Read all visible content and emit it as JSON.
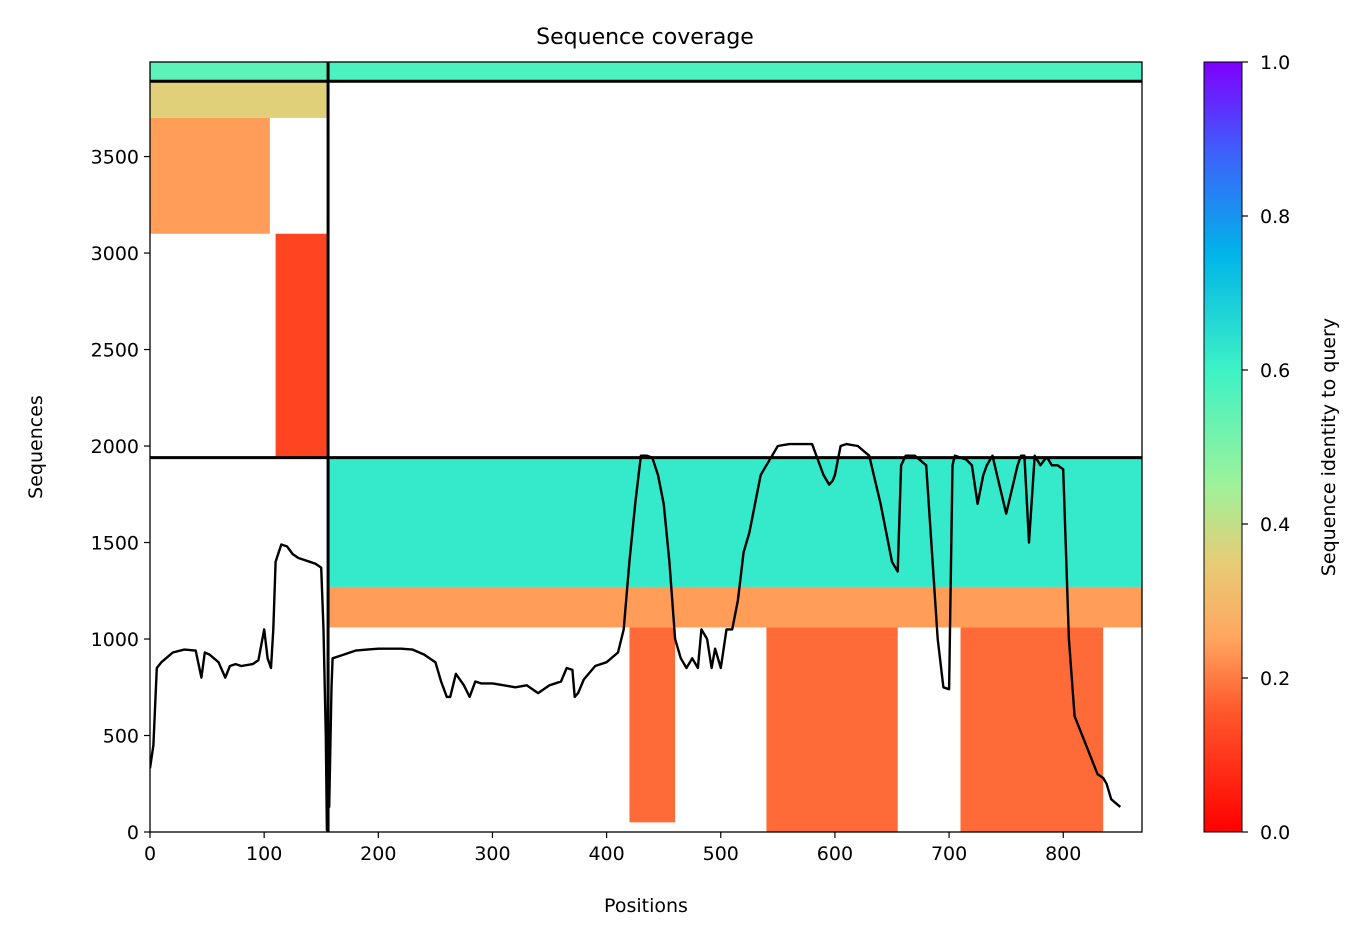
{
  "chart_data": {
    "type": "heatmap",
    "title": "Sequence coverage",
    "xlabel": "Positions",
    "ylabel": "Sequences",
    "xlim": [
      0,
      869
    ],
    "ylim": [
      0,
      3990
    ],
    "x_ticks": [
      "0",
      "100",
      "200",
      "300",
      "400",
      "500",
      "600",
      "700",
      "800"
    ],
    "x_tick_values": [
      0,
      100,
      200,
      300,
      400,
      500,
      600,
      700,
      800
    ],
    "y_ticks": [
      "0",
      "500",
      "1000",
      "1500",
      "2000",
      "2500",
      "3000",
      "3500"
    ],
    "y_tick_values": [
      0,
      500,
      1000,
      1500,
      2000,
      2500,
      3000,
      3500
    ],
    "colorbar": {
      "label": "Sequence identity to query",
      "ticks": [
        "0.0",
        "0.2",
        "0.4",
        "0.6",
        "0.8",
        "1.0"
      ],
      "tick_values": [
        0.0,
        0.2,
        0.4,
        0.6,
        0.8,
        1.0
      ],
      "colormap": "rainbow_r",
      "range": [
        0,
        1
      ]
    },
    "block_dividers": {
      "vertical_x": [
        156
      ],
      "horizontal_y": [
        1940,
        3890
      ]
    },
    "coverage_regions": [
      {
        "x": [
          0,
          155
        ],
        "y": [
          3890,
          3990
        ],
        "identity": 0.55
      },
      {
        "x": [
          156,
          869
        ],
        "y": [
          3890,
          3990
        ],
        "identity": 0.58
      },
      {
        "x": [
          0,
          155
        ],
        "y": [
          3700,
          3890
        ],
        "identity": 0.36
      },
      {
        "x": [
          0,
          105
        ],
        "y": [
          3100,
          3700
        ],
        "identity": 0.24
      },
      {
        "x": [
          110,
          155
        ],
        "y": [
          1940,
          3100
        ],
        "identity": 0.12
      },
      {
        "x": [
          156,
          869
        ],
        "y": [
          1270,
          1940
        ],
        "identity": 0.62
      },
      {
        "x": [
          156,
          869
        ],
        "y": [
          1060,
          1270
        ],
        "identity": 0.24
      },
      {
        "x": [
          420,
          460
        ],
        "y": [
          50,
          1060
        ],
        "identity": 0.18
      },
      {
        "x": [
          540,
          655
        ],
        "y": [
          0,
          1060
        ],
        "identity": 0.18
      },
      {
        "x": [
          710,
          835
        ],
        "y": [
          0,
          1060
        ],
        "identity": 0.18
      }
    ],
    "coverage_line": {
      "x": [
        0,
        3,
        6,
        10,
        20,
        30,
        40,
        45,
        48,
        52,
        60,
        66,
        70,
        75,
        80,
        90,
        95,
        100,
        103,
        106,
        108,
        110,
        115,
        120,
        125,
        130,
        135,
        140,
        145,
        150,
        152,
        154,
        155,
        156,
        157,
        159,
        160,
        165,
        170,
        180,
        190,
        200,
        210,
        220,
        230,
        240,
        250,
        255,
        260,
        263,
        268,
        275,
        280,
        285,
        290,
        300,
        310,
        320,
        330,
        340,
        350,
        360,
        365,
        370,
        372,
        375,
        380,
        390,
        400,
        410,
        415,
        420,
        425,
        428,
        430,
        435,
        440,
        445,
        450,
        455,
        460,
        465,
        470,
        475,
        480,
        483,
        488,
        492,
        495,
        500,
        505,
        510,
        515,
        520,
        525,
        530,
        535,
        540,
        545,
        550,
        560,
        570,
        580,
        590,
        595,
        598,
        600,
        605,
        610,
        620,
        630,
        640,
        650,
        655,
        658,
        662,
        665,
        670,
        680,
        690,
        695,
        700,
        703,
        705,
        710,
        715,
        720,
        725,
        730,
        733,
        738,
        742,
        750,
        760,
        763,
        766,
        770,
        775,
        780,
        785,
        787,
        790,
        795,
        800,
        805,
        810,
        820,
        830,
        835,
        838,
        842,
        846,
        850,
        856,
        860,
        865,
        869
      ],
      "y": [
        330,
        450,
        850,
        880,
        930,
        945,
        940,
        800,
        930,
        920,
        880,
        800,
        860,
        870,
        860,
        870,
        890,
        1050,
        900,
        850,
        1050,
        1400,
        1490,
        1480,
        1440,
        1420,
        1410,
        1400,
        1390,
        1370,
        1050,
        500,
        10,
        700,
        130,
        750,
        900,
        910,
        920,
        940,
        945,
        950,
        950,
        950,
        945,
        920,
        880,
        780,
        700,
        700,
        820,
        760,
        700,
        780,
        770,
        770,
        760,
        750,
        760,
        720,
        760,
        780,
        850,
        840,
        700,
        720,
        790,
        860,
        880,
        930,
        1050,
        1400,
        1700,
        1850,
        1950,
        1950,
        1940,
        1850,
        1700,
        1400,
        1000,
        900,
        850,
        900,
        850,
        1050,
        1000,
        850,
        950,
        850,
        1050,
        1050,
        1200,
        1450,
        1550,
        1700,
        1850,
        1900,
        1950,
        2000,
        2010,
        2010,
        2010,
        1850,
        1800,
        1820,
        1850,
        2000,
        2010,
        2000,
        1950,
        1700,
        1400,
        1350,
        1900,
        1950,
        1950,
        1950,
        1900,
        1000,
        750,
        740,
        1900,
        1950,
        1940,
        1930,
        1900,
        1700,
        1850,
        1900,
        1950,
        1850,
        1650,
        1900,
        1950,
        1950,
        1500,
        1950,
        1900,
        1940,
        1930,
        1900,
        1900,
        1880,
        1000,
        600,
        450,
        300,
        280,
        250,
        170,
        150,
        130
      ]
    }
  }
}
